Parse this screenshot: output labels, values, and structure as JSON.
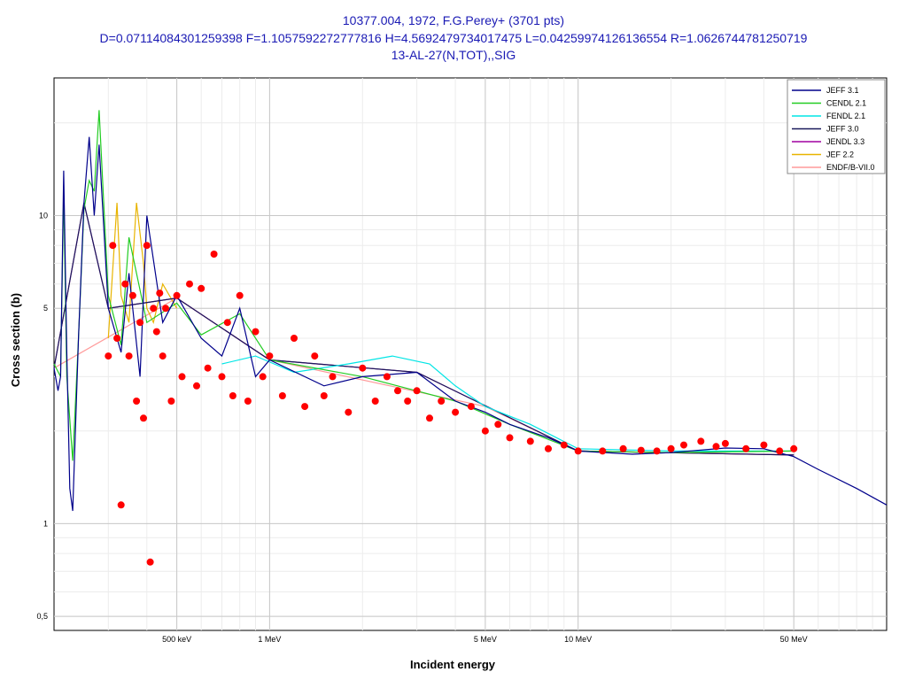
{
  "chart_data": {
    "type": "line",
    "title_lines": [
      "10377.004, 1972, F.G.Perey+ (3701 pts)",
      "D=0.07114084301259398 F=1.1057592272777816 H=4.5692479734017475 L=0.04259974126136554 R=1.0626744781250719",
      "13-AL-27(N,TOT),,SIG"
    ],
    "xlabel": "Incident energy",
    "ylabel": "Cross section (b)",
    "x_scale": "log",
    "y_scale": "log",
    "xlim": [
      0.2,
      100
    ],
    "ylim": [
      0.45,
      28
    ],
    "x_ticks": [
      {
        "value": 0.5,
        "label": "500 keV"
      },
      {
        "value": 1,
        "label": "1 MeV"
      },
      {
        "value": 5,
        "label": "5 MeV"
      },
      {
        "value": 10,
        "label": "10 MeV"
      },
      {
        "value": 50,
        "label": "50 MeV"
      }
    ],
    "y_ticks": [
      {
        "value": 0.5,
        "label": "0,5"
      },
      {
        "value": 1,
        "label": "1"
      },
      {
        "value": 5,
        "label": "5"
      },
      {
        "value": 10,
        "label": "10"
      }
    ],
    "grid": true,
    "legend_position": "top-right",
    "series": [
      {
        "name": "JEFF 3.1",
        "color": "#00008b",
        "x": [
          0.2,
          0.206,
          0.21,
          0.215,
          0.22,
          0.225,
          0.23,
          0.24,
          0.25,
          0.26,
          0.27,
          0.28,
          0.3,
          0.33,
          0.35,
          0.38,
          0.4,
          0.45,
          0.5,
          0.6,
          0.7,
          0.8,
          0.9,
          1.0,
          1.5,
          2,
          3,
          4,
          5,
          6,
          8,
          10,
          15,
          20,
          30,
          40,
          50,
          60,
          80,
          100
        ],
        "y": [
          3.2,
          2.7,
          3.0,
          14.0,
          3.6,
          1.3,
          1.1,
          4.0,
          11.0,
          18.0,
          10.0,
          17.0,
          5.0,
          3.6,
          6.5,
          3.0,
          10.0,
          4.5,
          5.5,
          4.0,
          3.5,
          5.0,
          3.0,
          3.4,
          2.8,
          3.0,
          3.1,
          2.5,
          2.3,
          2.1,
          1.9,
          1.72,
          1.68,
          1.7,
          1.76,
          1.75,
          1.65,
          1.5,
          1.3,
          1.15
        ]
      },
      {
        "name": "CENDL 2.1",
        "color": "#22cc22",
        "x": [
          0.2,
          0.21,
          0.215,
          0.22,
          0.23,
          0.24,
          0.25,
          0.26,
          0.27,
          0.28,
          0.3,
          0.33,
          0.35,
          0.4,
          0.5,
          0.6,
          0.8,
          1.0,
          2,
          4,
          6,
          10,
          20,
          50
        ],
        "y": [
          3.3,
          3.0,
          12.0,
          3.0,
          1.6,
          4.0,
          10.5,
          13.0,
          12.0,
          22.0,
          5.5,
          3.8,
          8.5,
          4.5,
          5.2,
          4.1,
          4.8,
          3.4,
          3.0,
          2.5,
          2.1,
          1.72,
          1.7,
          1.72
        ]
      },
      {
        "name": "FENDL 2.1",
        "color": "#00e5e5",
        "x": [
          0.7,
          0.9,
          1.2,
          1.8,
          2.5,
          3.3,
          4.0,
          5.0,
          7.0,
          10,
          20,
          50
        ],
        "y": [
          3.3,
          3.5,
          3.1,
          3.3,
          3.5,
          3.3,
          2.8,
          2.4,
          2.1,
          1.75,
          1.72,
          1.72
        ]
      },
      {
        "name": "JEFF 3.0",
        "color": "#1a1a5a",
        "x": [
          0.2,
          0.25,
          0.3,
          0.5,
          1.0,
          3,
          10,
          50
        ],
        "y": [
          3.2,
          11.0,
          5.0,
          5.4,
          3.4,
          3.1,
          1.72,
          1.67
        ]
      },
      {
        "name": "JENDL 3.3",
        "color": "#a000a0",
        "x": [
          0.2,
          0.25,
          0.3,
          0.5,
          1.0,
          3,
          10,
          50
        ],
        "y": [
          3.2,
          11.0,
          5.0,
          5.4,
          3.4,
          3.1,
          1.72,
          1.67
        ]
      },
      {
        "name": "JEF 2.2",
        "color": "#e8b400",
        "x": [
          0.3,
          0.32,
          0.33,
          0.35,
          0.37,
          0.39,
          0.4,
          0.42,
          0.45,
          0.5
        ],
        "y": [
          4.0,
          11.0,
          5.5,
          4.5,
          11.0,
          7.0,
          5.0,
          4.5,
          6.0,
          5.0
        ]
      },
      {
        "name": "ENDF/B-VII.0",
        "color": "#ff9a9a",
        "x": [
          0.2,
          0.5,
          1.0,
          5,
          10,
          50
        ],
        "y": [
          3.2,
          5.4,
          3.4,
          2.4,
          1.72,
          1.67
        ]
      }
    ],
    "experimental_data": {
      "color": "#ff0000",
      "x": [
        0.3,
        0.31,
        0.32,
        0.33,
        0.34,
        0.35,
        0.36,
        0.37,
        0.38,
        0.39,
        0.4,
        0.41,
        0.42,
        0.43,
        0.44,
        0.45,
        0.46,
        0.48,
        0.5,
        0.52,
        0.55,
        0.58,
        0.6,
        0.63,
        0.66,
        0.7,
        0.73,
        0.76,
        0.8,
        0.85,
        0.9,
        0.95,
        1.0,
        1.1,
        1.2,
        1.3,
        1.4,
        1.5,
        1.6,
        1.8,
        2.0,
        2.2,
        2.4,
        2.6,
        2.8,
        3.0,
        3.3,
        3.6,
        4.0,
        4.5,
        5.0,
        5.5,
        6.0,
        7.0,
        8.0,
        9.0,
        10,
        12,
        14,
        16,
        18,
        20,
        22,
        25,
        28,
        30,
        35,
        40,
        45,
        50
      ],
      "y": [
        3.5,
        8.0,
        4.0,
        1.15,
        6.0,
        3.5,
        5.5,
        2.5,
        4.5,
        2.2,
        8.0,
        0.75,
        5.0,
        4.2,
        5.6,
        3.5,
        5.0,
        2.5,
        5.5,
        3.0,
        6.0,
        2.8,
        5.8,
        3.2,
        7.5,
        3.0,
        4.5,
        2.6,
        5.5,
        2.5,
        4.2,
        3.0,
        3.5,
        2.6,
        4.0,
        2.4,
        3.5,
        2.6,
        3.0,
        2.3,
        3.2,
        2.5,
        3.0,
        2.7,
        2.5,
        2.7,
        2.2,
        2.5,
        2.3,
        2.4,
        2.0,
        2.1,
        1.9,
        1.85,
        1.75,
        1.8,
        1.72,
        1.72,
        1.75,
        1.73,
        1.72,
        1.75,
        1.8,
        1.85,
        1.78,
        1.82,
        1.75,
        1.8,
        1.72,
        1.75
      ]
    }
  }
}
